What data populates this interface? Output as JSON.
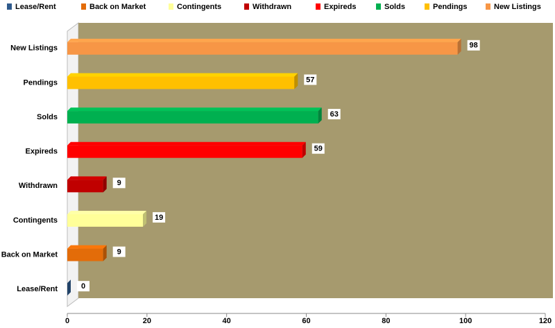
{
  "chart_data": {
    "type": "bar",
    "categories": [
      "Lease/Rent",
      "Back on Market",
      "Contingents",
      "Withdrawn",
      "Expireds",
      "Solds",
      "Pendings",
      "New Listings"
    ],
    "values": [
      0,
      9,
      19,
      9,
      59,
      63,
      57,
      98
    ],
    "colors": [
      "#2f5a8c",
      "#e36c09",
      "#ffff99",
      "#c00000",
      "#ff0000",
      "#00b050",
      "#ffc000",
      "#f79646"
    ],
    "xlim": [
      0,
      120
    ],
    "xticks": [
      0,
      20,
      40,
      60,
      80,
      100,
      120
    ]
  }
}
